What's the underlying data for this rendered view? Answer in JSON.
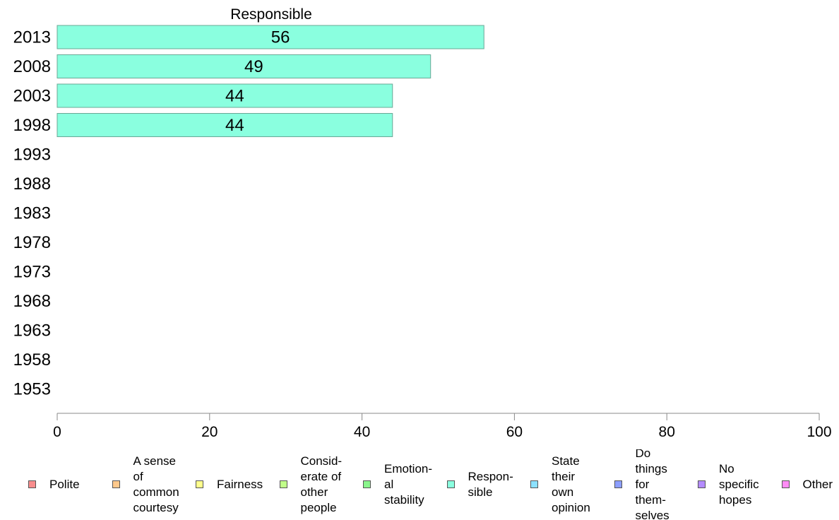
{
  "chart_data": {
    "type": "bar",
    "orientation": "horizontal",
    "title": "Responsible",
    "categories": [
      "2013",
      "2008",
      "2003",
      "1998",
      "1993",
      "1988",
      "1983",
      "1978",
      "1973",
      "1968",
      "1963",
      "1958",
      "1953"
    ],
    "series": [
      {
        "name": "Responsible",
        "color": "#8affdf",
        "values": [
          56,
          49,
          44,
          44,
          null,
          null,
          null,
          null,
          null,
          null,
          null,
          null,
          null
        ],
        "data_labels": [
          "56",
          "49",
          "44",
          "44",
          "",
          "",
          "",
          "",
          "",
          "",
          "",
          "",
          ""
        ]
      }
    ],
    "xlim": [
      0,
      100
    ],
    "xticks": [
      "0",
      "20",
      "40",
      "60",
      "80",
      "100"
    ],
    "grid": false,
    "legend_position": "bottom"
  },
  "legend": [
    {
      "label": "Polite",
      "color": "#f88d8d"
    },
    {
      "label": "A sense\nof\ncommon\ncourtesy",
      "color": "#ffc98c"
    },
    {
      "label": "Fairness",
      "color": "#ffff8c"
    },
    {
      "label": "Consid-\nerate of\nother\npeople",
      "color": "#c1ff8a"
    },
    {
      "label": "Emotion-\nal\nstability",
      "color": "#8af58c"
    },
    {
      "label": "Respon-\nsible",
      "color": "#8affdf"
    },
    {
      "label": "State\ntheir\nown\nopinion",
      "color": "#8ce1ff"
    },
    {
      "label": "Do\nthings\nfor\nthem-\nselves",
      "color": "#8c9eff"
    },
    {
      "label": "No\nspecific\nhopes",
      "color": "#b48cff"
    },
    {
      "label": "Other",
      "color": "#ff8cf5"
    }
  ]
}
